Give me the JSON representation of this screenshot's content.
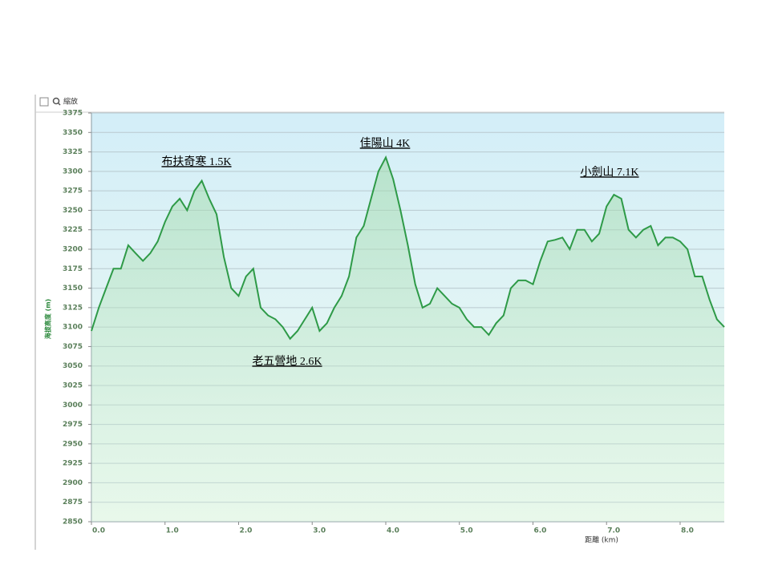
{
  "toolbar": {
    "zoom_label": "縮放"
  },
  "chart_data": {
    "type": "line",
    "x": [
      0,
      0.1,
      0.2,
      0.3,
      0.4,
      0.5,
      0.6,
      0.7,
      0.8,
      0.9,
      1.0,
      1.1,
      1.2,
      1.3,
      1.4,
      1.5,
      1.6,
      1.7,
      1.8,
      1.9,
      2.0,
      2.1,
      2.2,
      2.3,
      2.4,
      2.5,
      2.6,
      2.7,
      2.8,
      2.9,
      3.0,
      3.1,
      3.2,
      3.3,
      3.4,
      3.5,
      3.6,
      3.7,
      3.8,
      3.9,
      4.0,
      4.1,
      4.2,
      4.3,
      4.4,
      4.5,
      4.6,
      4.7,
      4.8,
      4.9,
      5.0,
      5.1,
      5.2,
      5.3,
      5.4,
      5.5,
      5.6,
      5.7,
      5.8,
      5.9,
      6.0,
      6.1,
      6.2,
      6.3,
      6.4,
      6.5,
      6.6,
      6.7,
      6.8,
      6.9,
      7.0,
      7.1,
      7.2,
      7.3,
      7.4,
      7.5,
      7.6,
      7.7,
      7.8,
      7.9,
      8.0,
      8.1,
      8.2,
      8.3,
      8.4,
      8.5,
      8.6
    ],
    "series": [
      {
        "name": "海拔高度",
        "color": "#2e9a47",
        "values": [
          3095,
          3125,
          3150,
          3175,
          3175,
          3205,
          3195,
          3185,
          3195,
          3210,
          3235,
          3255,
          3265,
          3250,
          3275,
          3288,
          3265,
          3245,
          3190,
          3150,
          3140,
          3165,
          3175,
          3125,
          3115,
          3110,
          3100,
          3085,
          3095,
          3110,
          3125,
          3095,
          3105,
          3125,
          3140,
          3165,
          3215,
          3230,
          3265,
          3300,
          3318,
          3290,
          3250,
          3205,
          3155,
          3125,
          3130,
          3150,
          3140,
          3130,
          3125,
          3110,
          3100,
          3100,
          3090,
          3105,
          3115,
          3150,
          3160,
          3160,
          3155,
          3185,
          3210,
          3212,
          3215,
          3200,
          3225,
          3225,
          3210,
          3220,
          3255,
          3270,
          3265,
          3225,
          3215,
          3225,
          3230,
          3205,
          3215,
          3215,
          3210,
          3200,
          3165,
          3165,
          3135,
          3110,
          3100
        ]
      }
    ],
    "xlim": [
      0,
      8.6
    ],
    "ylim": [
      2850,
      3375
    ],
    "xticks": [
      {
        "value": 0,
        "label": "0.0"
      },
      {
        "value": 1,
        "label": "1.0"
      },
      {
        "value": 2,
        "label": "2.0"
      },
      {
        "value": 3,
        "label": "3.0"
      },
      {
        "value": 4,
        "label": "4.0"
      },
      {
        "value": 5,
        "label": "5.0"
      },
      {
        "value": 6,
        "label": "6.0"
      },
      {
        "value": 7,
        "label": "7.0"
      },
      {
        "value": 8,
        "label": "8.0"
      }
    ],
    "yticks": [
      2850,
      2875,
      2900,
      2925,
      2950,
      2975,
      3000,
      3025,
      3050,
      3075,
      3100,
      3125,
      3150,
      3175,
      3200,
      3225,
      3250,
      3275,
      3300,
      3325,
      3350,
      3375
    ],
    "xlabel": "距離 (km)",
    "ylabel": "海拔高度 (m)",
    "grid": true,
    "annotations": [
      "布扶奇寒 1.5K",
      "佳陽山 4K",
      "老五營地 2.6K",
      "小劍山 7.1K"
    ]
  }
}
